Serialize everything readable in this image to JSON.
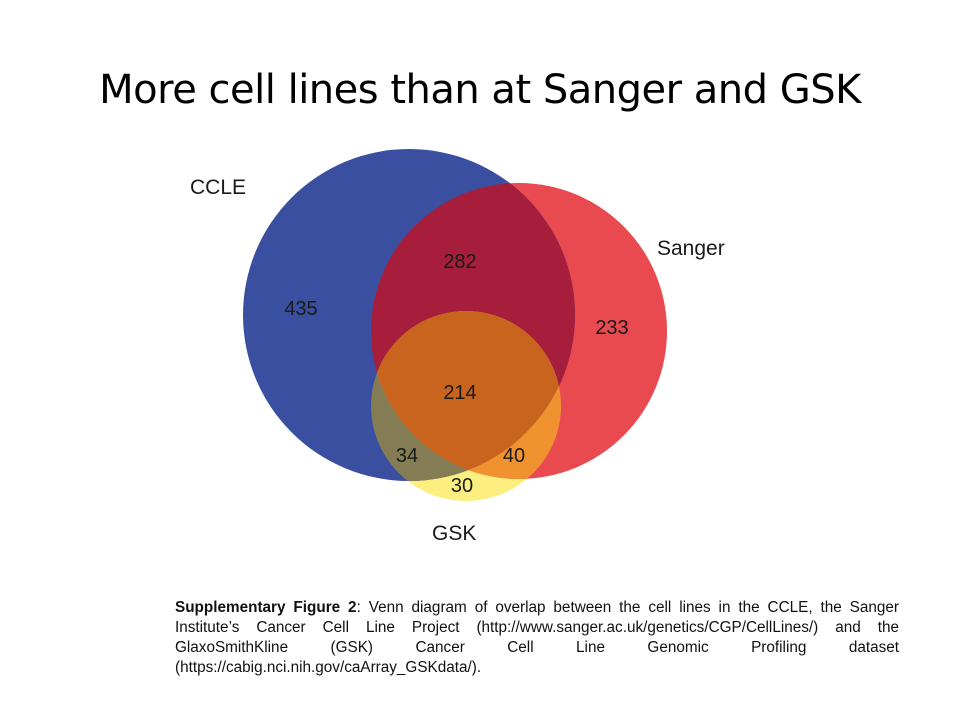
{
  "slide": {
    "title": "More cell lines than at Sanger and GSK"
  },
  "venn": {
    "sets": [
      {
        "name": "CCLE",
        "color": "#3a4fa0"
      },
      {
        "name": "Sanger",
        "color": "#e84a4f"
      },
      {
        "name": "GSK",
        "color": "#fcef80"
      }
    ],
    "regions": {
      "ccle_only": "435",
      "ccle_sanger": "282",
      "sanger_only": "233",
      "all_three": "214",
      "ccle_gsk": "34",
      "sanger_gsk": "40",
      "gsk_only": "30"
    },
    "region_colors": {
      "ccle_sanger": "#a61e3c",
      "all_three": "#c9641e",
      "ccle_gsk": "#847c55",
      "sanger_gsk": "#f0922f"
    }
  },
  "caption": {
    "lead": "Supplementary Figure 2",
    "text": ": Venn diagram of overlap between the cell lines in the CCLE, the Sanger Institute’s Cancer Cell Line Project (http://www.sanger.ac.uk/genetics/CGP/CellLines/) and the GlaxoSmithKline (GSK) Cancer Cell Line Genomic Profiling dataset (https://cabig.nci.nih.gov/caArray_GSKdata/)."
  }
}
